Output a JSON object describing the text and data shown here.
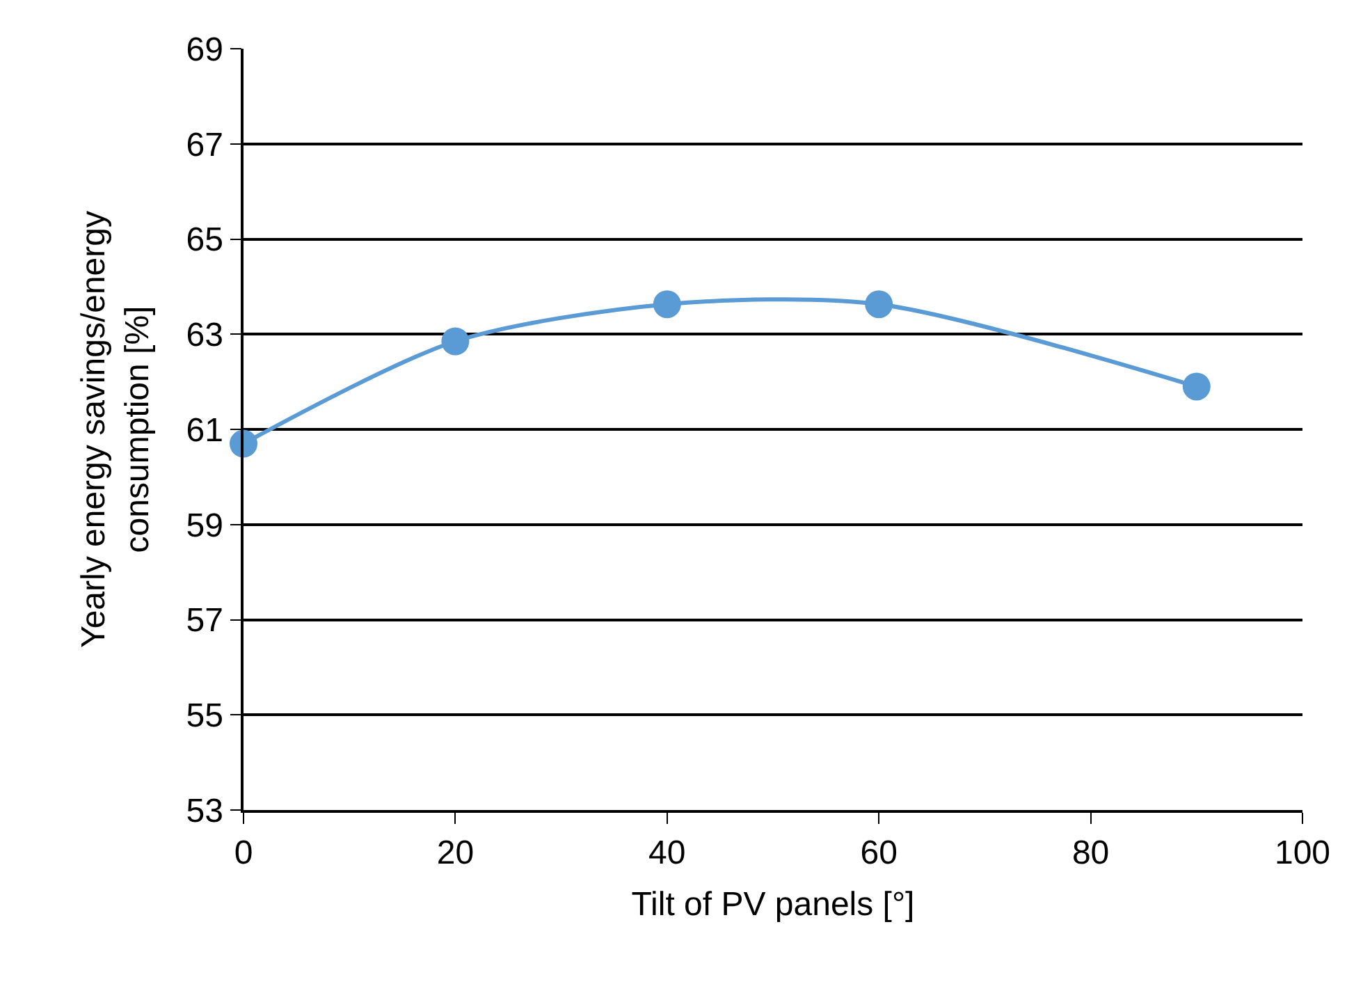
{
  "chart_data": {
    "type": "line",
    "xlabel": "Tilt of PV panels [°]",
    "ylabel": "Yearly energy savings/energy consumption [%]",
    "x": [
      0,
      20,
      40,
      60,
      90
    ],
    "series": [
      {
        "color": "#5b9bd5",
        "values": [
          60.7,
          62.85,
          63.63,
          63.63,
          61.9
        ]
      }
    ],
    "xlim": [
      0,
      100
    ],
    "xticks": [
      0,
      20,
      40,
      60,
      80,
      100
    ],
    "ylim": [
      53,
      69
    ],
    "yticks": [
      53,
      55,
      57,
      59,
      61,
      63,
      65,
      67,
      69
    ],
    "grid": "y",
    "marker": "circle",
    "line_style": "solid"
  }
}
